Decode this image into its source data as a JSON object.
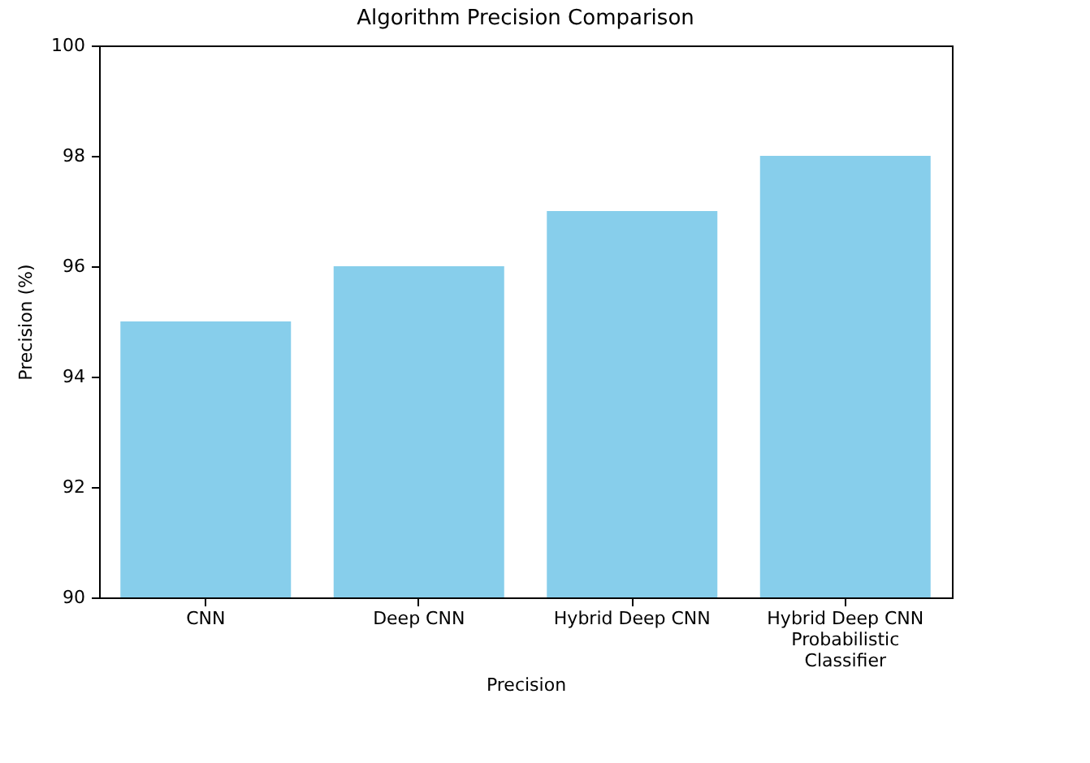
{
  "chart_data": {
    "type": "bar",
    "title": "Algorithm Precision Comparison",
    "xlabel": "Precision",
    "ylabel": "Precision (%)",
    "categories": [
      "CNN",
      "Deep CNN",
      "Hybrid Deep CNN",
      "Hybrid Deep CNN Probabilistic Classifier"
    ],
    "values": [
      95,
      96,
      97,
      98
    ],
    "color": "#87ceeb",
    "ylim": [
      90,
      100
    ],
    "yticks": [
      90,
      92,
      94,
      96,
      98,
      100
    ],
    "grid": false
  }
}
